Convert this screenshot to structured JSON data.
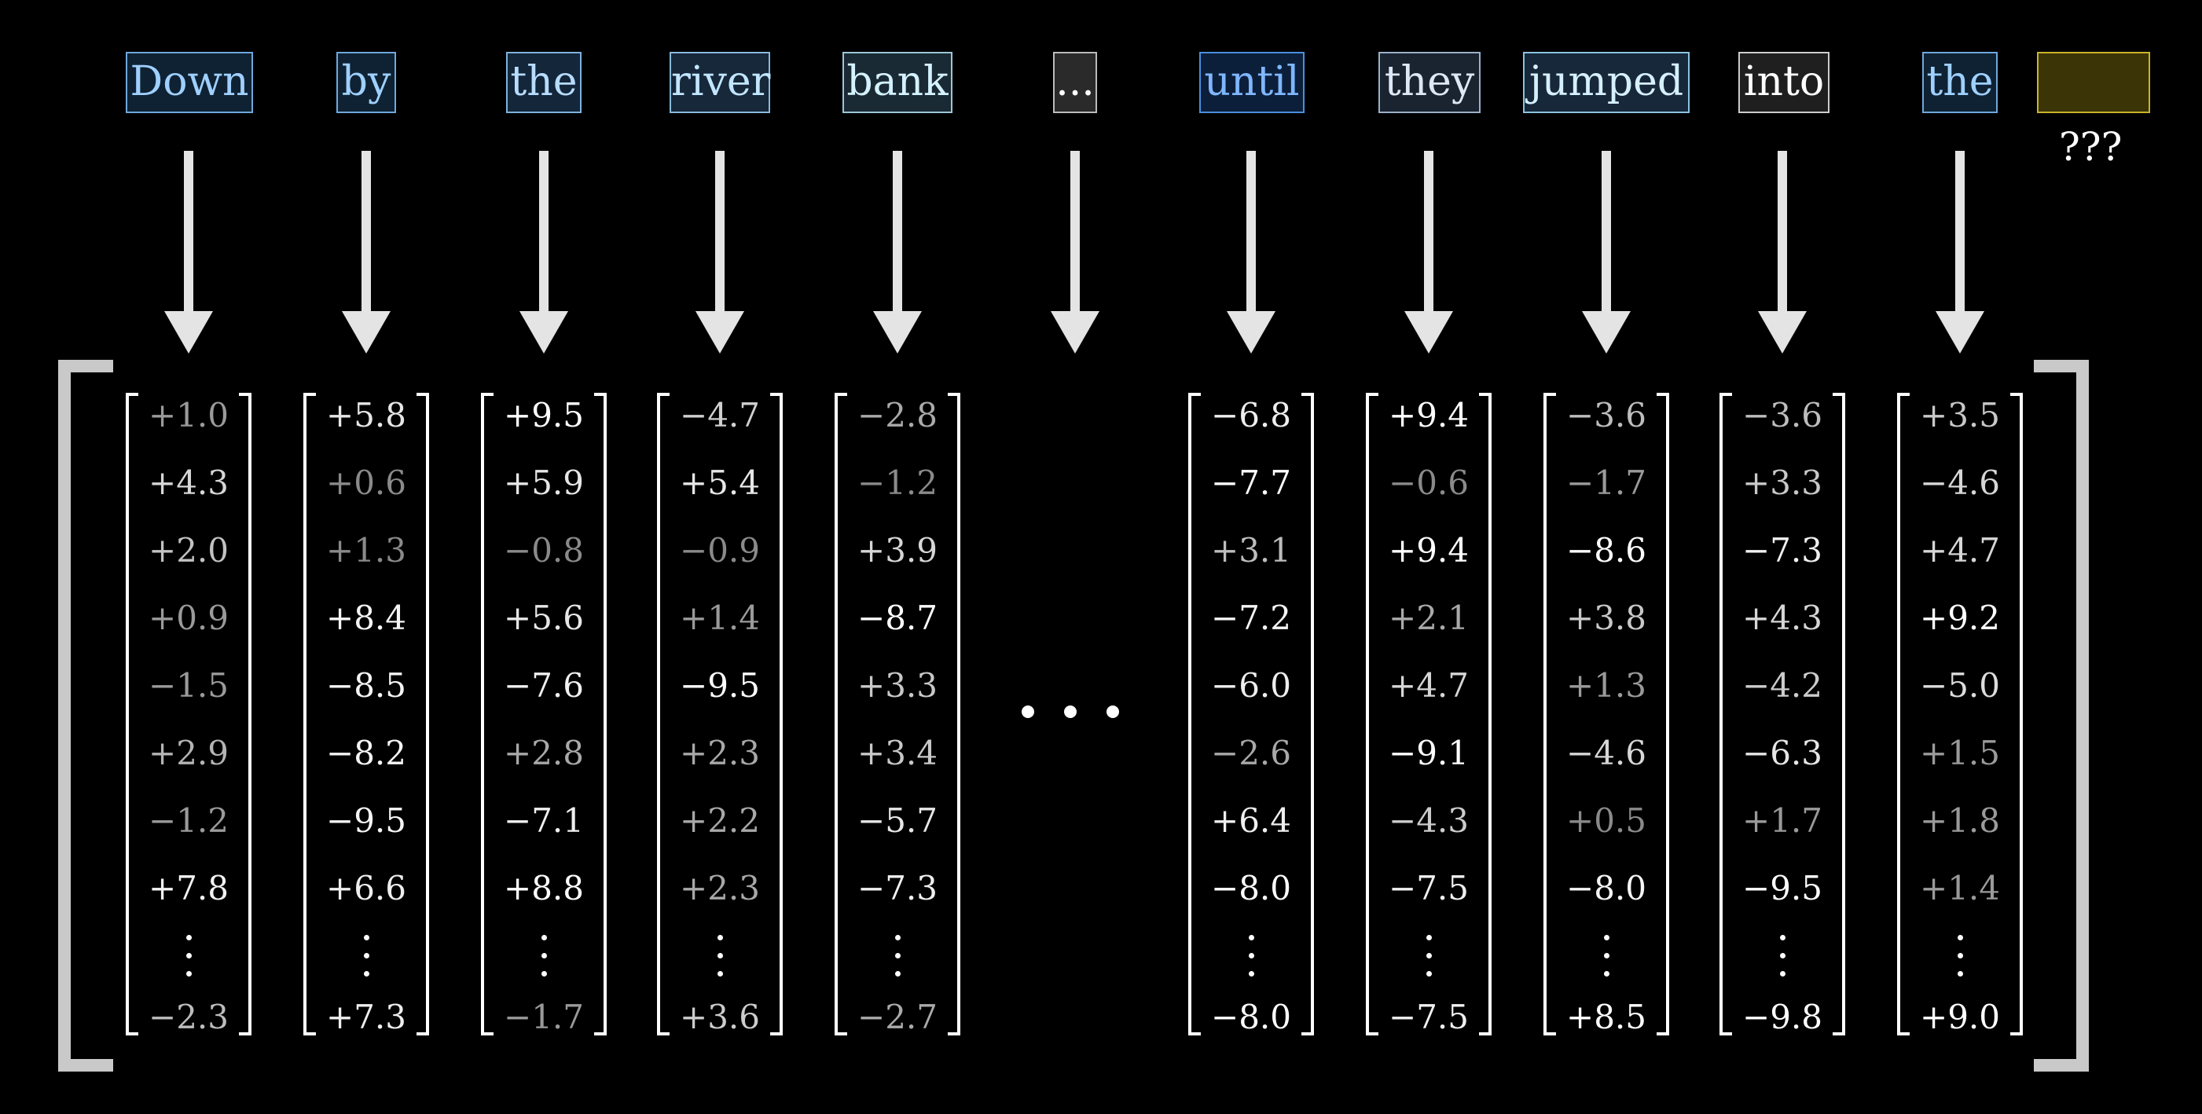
{
  "tokens": [
    {
      "text": "Down",
      "color": "#9fd0ff",
      "border": "#6fa8dc",
      "bg": "#0f2233"
    },
    {
      "text": "by",
      "color": "#9fd0ff",
      "border": "#6fa8dc",
      "bg": "#0f2233"
    },
    {
      "text": "the",
      "color": "#b7dcff",
      "border": "#7fb2dd",
      "bg": "#13263a"
    },
    {
      "text": "river",
      "color": "#c2e6ff",
      "border": "#8ab9dc",
      "bg": "#16283a"
    },
    {
      "text": "bank",
      "color": "#d4f2ff",
      "border": "#9cc6d8",
      "bg": "#1a2a34"
    },
    {
      "text": "...",
      "color": "#ffffff",
      "border": "#bbbbbb",
      "bg": "#2a2a2a"
    },
    {
      "text": "until",
      "color": "#7fb6ff",
      "border": "#4a8fe0",
      "bg": "#0c1f3a"
    },
    {
      "text": "they",
      "color": "#dce8f5",
      "border": "#9ab0c8",
      "bg": "#1a2330"
    },
    {
      "text": "jumped",
      "color": "#d6f0ff",
      "border": "#8cc2e0",
      "bg": "#16283a"
    },
    {
      "text": "into",
      "color": "#ffffff",
      "border": "#cccccc",
      "bg": "#1f1f1f"
    },
    {
      "text": "the",
      "color": "#9fd0ff",
      "border": "#6fa8dc",
      "bg": "#0f2233"
    },
    {
      "text": "",
      "color": "#ffffff",
      "border": "#c9b42a",
      "bg": "#3b3407"
    }
  ],
  "unknown_label": "???",
  "vectors": [
    {
      "top": [
        "+1.0",
        "+4.3",
        "+2.0",
        "+0.9",
        "−1.5",
        "+2.9",
        "−1.2",
        "+7.8"
      ],
      "bottom": "−2.3",
      "shade": [
        "#9a9a9a",
        "#d6d6d6",
        "#c2c2c2",
        "#9a9a9a",
        "#9a9a9a",
        "#b4b4b4",
        "#9a9a9a",
        "#f2f2f2",
        "#bdbdbd"
      ]
    },
    {
      "top": [
        "+5.8",
        "+0.6",
        "+1.3",
        "+8.4",
        "−8.5",
        "−8.2",
        "−9.5",
        "+6.6"
      ],
      "bottom": "+7.3",
      "shade": [
        "#e6e6e6",
        "#8a8a8a",
        "#8a8a8a",
        "#f5f5f5",
        "#f5f5f5",
        "#f5f5f5",
        "#f5f5f5",
        "#eeeeee",
        "#eeeeee"
      ]
    },
    {
      "top": [
        "+9.5",
        "+5.9",
        "−0.8",
        "+5.6",
        "−7.6",
        "+2.8",
        "−7.1",
        "+8.8"
      ],
      "bottom": "−1.7",
      "shade": [
        "#ffffff",
        "#e6e6e6",
        "#8a8a8a",
        "#e6e6e6",
        "#f0f0f0",
        "#a8a8a8",
        "#f0f0f0",
        "#ffffff",
        "#9a9a9a"
      ]
    },
    {
      "top": [
        "−4.7",
        "+5.4",
        "−0.9",
        "+1.4",
        "−9.5",
        "+2.3",
        "+2.2",
        "+2.3"
      ],
      "bottom": "+3.6",
      "shade": [
        "#d0d0d0",
        "#e6e6e6",
        "#8a8a8a",
        "#9a9a9a",
        "#ffffff",
        "#a8a8a8",
        "#a8a8a8",
        "#a8a8a8",
        "#cccccc"
      ]
    },
    {
      "top": [
        "−2.8",
        "−1.2",
        "+3.9",
        "−8.7",
        "+3.3",
        "+3.4",
        "−5.7",
        "−7.3"
      ],
      "bottom": "−2.7",
      "shade": [
        "#aaaaaa",
        "#8a8a8a",
        "#d6d6d6",
        "#ffffff",
        "#c8c8c8",
        "#c8c8c8",
        "#e6e6e6",
        "#f0f0f0",
        "#aaaaaa"
      ]
    },
    {
      "top": [
        "−6.8",
        "−7.7",
        "+3.1",
        "−7.2",
        "−6.0",
        "−2.6",
        "+6.4",
        "−8.0"
      ],
      "bottom": "−8.0",
      "shade": [
        "#eeeeee",
        "#ffffff",
        "#bdbdbd",
        "#f5f5f5",
        "#eeeeee",
        "#a8a8a8",
        "#eeeeee",
        "#ffffff",
        "#ffffff"
      ]
    },
    {
      "top": [
        "+9.4",
        "−0.6",
        "+9.4",
        "+2.1",
        "+4.7",
        "−9.1",
        "−4.3",
        "−7.5"
      ],
      "bottom": "−7.5",
      "shade": [
        "#ffffff",
        "#8a8a8a",
        "#ffffff",
        "#aaaaaa",
        "#d6d6d6",
        "#ffffff",
        "#cccccc",
        "#f0f0f0",
        "#f0f0f0"
      ]
    },
    {
      "top": [
        "−3.6",
        "−1.7",
        "−8.6",
        "+3.8",
        "+1.3",
        "−4.6",
        "+0.5",
        "−8.0"
      ],
      "bottom": "+8.5",
      "shade": [
        "#bdbdbd",
        "#9a9a9a",
        "#ffffff",
        "#c8c8c8",
        "#9a9a9a",
        "#d6d6d6",
        "#8a8a8a",
        "#f5f5f5",
        "#ffffff"
      ]
    },
    {
      "top": [
        "−3.6",
        "+3.3",
        "−7.3",
        "+4.3",
        "−4.2",
        "−6.3",
        "+1.7",
        "−9.5"
      ],
      "bottom": "−9.8",
      "shade": [
        "#bdbdbd",
        "#c8c8c8",
        "#f0f0f0",
        "#d6d6d6",
        "#cccccc",
        "#e6e6e6",
        "#9a9a9a",
        "#ffffff",
        "#ffffff"
      ]
    },
    {
      "top": [
        "+3.5",
        "−4.6",
        "+4.7",
        "+9.2",
        "−5.0",
        "+1.5",
        "+1.8",
        "+1.4"
      ],
      "bottom": "+9.0",
      "shade": [
        "#c8c8c8",
        "#d6d6d6",
        "#d6d6d6",
        "#ffffff",
        "#dcdcdc",
        "#9a9a9a",
        "#9a9a9a",
        "#9a9a9a",
        "#ffffff"
      ]
    }
  ]
}
